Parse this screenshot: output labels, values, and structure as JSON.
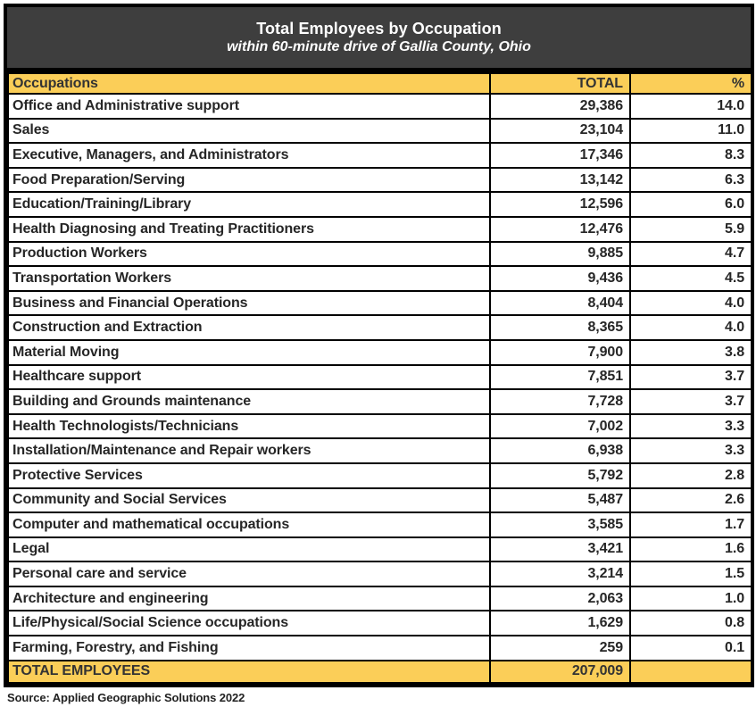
{
  "title": {
    "line1": "Total Employees by Occupation",
    "line2": "within 60-minute drive of Gallia County, Ohio"
  },
  "columns": {
    "occupations": "Occupations",
    "total": "TOTAL",
    "percent": "%"
  },
  "rows": [
    {
      "occupation": "Office and Administrative support",
      "total": "29,386",
      "percent": "14.0"
    },
    {
      "occupation": "Sales",
      "total": "23,104",
      "percent": "11.0"
    },
    {
      "occupation": "Executive, Managers, and Administrators",
      "total": "17,346",
      "percent": "8.3"
    },
    {
      "occupation": "Food Preparation/Serving",
      "total": "13,142",
      "percent": "6.3"
    },
    {
      "occupation": "Education/Training/Library",
      "total": "12,596",
      "percent": "6.0"
    },
    {
      "occupation": "Health Diagnosing and Treating Practitioners",
      "total": "12,476",
      "percent": "5.9"
    },
    {
      "occupation": "Production Workers",
      "total": "9,885",
      "percent": "4.7"
    },
    {
      "occupation": "Transportation Workers",
      "total": "9,436",
      "percent": "4.5"
    },
    {
      "occupation": "Business and Financial Operations",
      "total": "8,404",
      "percent": "4.0"
    },
    {
      "occupation": "Construction and Extraction",
      "total": "8,365",
      "percent": "4.0"
    },
    {
      "occupation": "Material Moving",
      "total": "7,900",
      "percent": "3.8"
    },
    {
      "occupation": "Healthcare support",
      "total": "7,851",
      "percent": "3.7"
    },
    {
      "occupation": "Building and Grounds maintenance",
      "total": "7,728",
      "percent": "3.7"
    },
    {
      "occupation": "Health Technologists/Technicians",
      "total": "7,002",
      "percent": "3.3"
    },
    {
      "occupation": "Installation/Maintenance and Repair workers",
      "total": "6,938",
      "percent": "3.3"
    },
    {
      "occupation": "Protective Services",
      "total": "5,792",
      "percent": "2.8"
    },
    {
      "occupation": "Community and Social Services",
      "total": "5,487",
      "percent": "2.6"
    },
    {
      "occupation": "Computer and mathematical occupations",
      "total": "3,585",
      "percent": "1.7"
    },
    {
      "occupation": "Legal",
      "total": "3,421",
      "percent": "1.6"
    },
    {
      "occupation": "Personal care and service",
      "total": "3,214",
      "percent": "1.5"
    },
    {
      "occupation": "Architecture and engineering",
      "total": "2,063",
      "percent": "1.0"
    },
    {
      "occupation": "Life/Physical/Social Science occupations",
      "total": "1,629",
      "percent": "0.8"
    },
    {
      "occupation": "Farming, Forestry, and Fishing",
      "total": "259",
      "percent": "0.1"
    }
  ],
  "total_row": {
    "label": "TOTAL EMPLOYEES",
    "total": "207,009",
    "percent": ""
  },
  "source": "Source: Applied Geographic Solutions 2022",
  "colors": {
    "header_bg": "#fbce58",
    "title_bg": "#3e3e3e",
    "title_text": "#ffffff",
    "cell_text": "#262626",
    "border": "#000000"
  },
  "chart_data": {
    "type": "table",
    "title": "Total Employees by Occupation",
    "subtitle": "within 60-minute drive of Gallia County, Ohio",
    "columns": [
      "Occupations",
      "TOTAL",
      "%"
    ],
    "rows": [
      [
        "Office and Administrative support",
        29386,
        14.0
      ],
      [
        "Sales",
        23104,
        11.0
      ],
      [
        "Executive, Managers, and Administrators",
        17346,
        8.3
      ],
      [
        "Food Preparation/Serving",
        13142,
        6.3
      ],
      [
        "Education/Training/Library",
        12596,
        6.0
      ],
      [
        "Health Diagnosing and Treating Practitioners",
        12476,
        5.9
      ],
      [
        "Production Workers",
        9885,
        4.7
      ],
      [
        "Transportation Workers",
        9436,
        4.5
      ],
      [
        "Business and Financial Operations",
        8404,
        4.0
      ],
      [
        "Construction and Extraction",
        8365,
        4.0
      ],
      [
        "Material Moving",
        7900,
        3.8
      ],
      [
        "Healthcare support",
        7851,
        3.7
      ],
      [
        "Building and Grounds maintenance",
        7728,
        3.7
      ],
      [
        "Health Technologists/Technicians",
        7002,
        3.3
      ],
      [
        "Installation/Maintenance and Repair workers",
        6938,
        3.3
      ],
      [
        "Protective Services",
        5792,
        2.8
      ],
      [
        "Community and Social Services",
        5487,
        2.6
      ],
      [
        "Computer and mathematical occupations",
        3585,
        1.7
      ],
      [
        "Legal",
        3421,
        1.6
      ],
      [
        "Personal care and service",
        3214,
        1.5
      ],
      [
        "Architecture and engineering",
        2063,
        1.0
      ],
      [
        "Life/Physical/Social Science occupations",
        1629,
        0.8
      ],
      [
        "Farming, Forestry, and Fishing",
        259,
        0.1
      ]
    ],
    "total_row": [
      "TOTAL EMPLOYEES",
      207009,
      null
    ],
    "source": "Source: Applied Geographic Solutions 2022"
  }
}
